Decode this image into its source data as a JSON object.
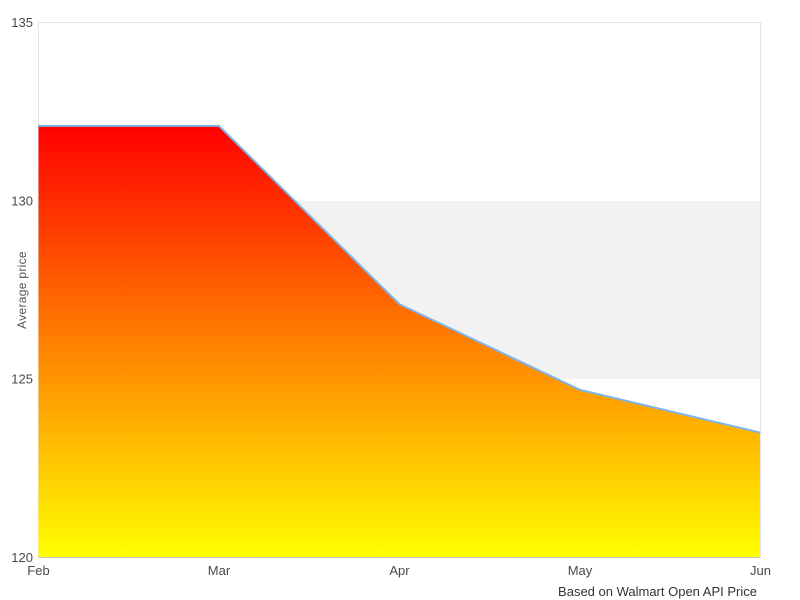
{
  "chart_data": {
    "type": "area",
    "title": "",
    "categories": [
      "Feb",
      "Mar",
      "Apr",
      "May",
      "Jun"
    ],
    "values": [
      132.1,
      132.1,
      127.1,
      124.7,
      123.5
    ],
    "series": [
      {
        "name": "Average price",
        "values": [
          132.1,
          132.1,
          127.1,
          124.7,
          123.5
        ]
      }
    ],
    "xlabel": "",
    "ylabel": "Average price",
    "ylim": [
      120,
      135
    ],
    "yticks": [
      120,
      125,
      130,
      135
    ],
    "grid": false,
    "legend": "none",
    "plot_band": {
      "from": 125,
      "to": 130,
      "color": "#f2f2f2"
    },
    "caption": "Based on Walmart Open API Price"
  },
  "colors": {
    "background": "#ffffff",
    "plot_border": "#e6e6e6",
    "x_axis_line": "#c8c8c8",
    "tick_label": "#4a4a4a",
    "axis_title": "#555555",
    "caption": "#333333",
    "series_line": "#7cb5ec",
    "gradient_top": "#ff0000",
    "gradient_bottom": "#ffff00"
  }
}
